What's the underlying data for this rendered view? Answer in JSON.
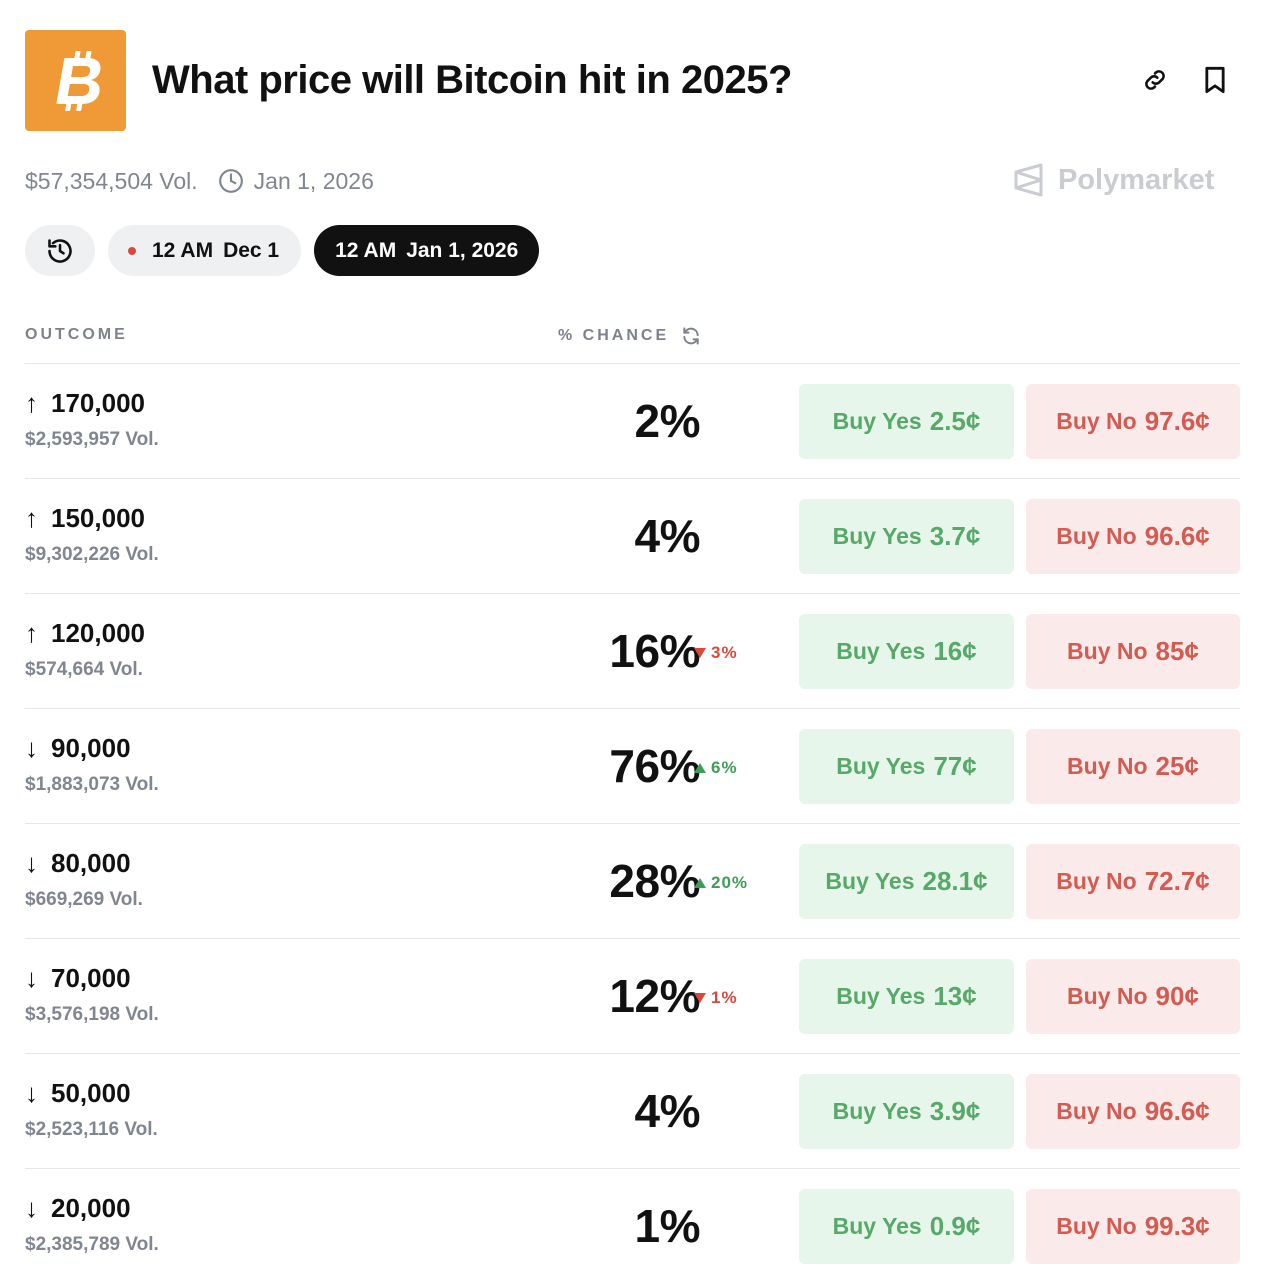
{
  "header": {
    "title": "What price will Bitcoin hit in 2025?",
    "logo_icon": "bitcoin-logo",
    "actions": [
      "link-icon",
      "bookmark-icon"
    ]
  },
  "meta": {
    "volume": "$57,354,504 Vol.",
    "end_date": "Jan 1, 2026",
    "brand": "Polymarket"
  },
  "pills": {
    "history_icon": "history-icon",
    "dec": {
      "time": "12 AM",
      "date": "Dec 1"
    },
    "jan": {
      "time": "12 AM",
      "date": "Jan 1, 2026"
    }
  },
  "columns": {
    "outcome": "OUTCOME",
    "chance": "% CHANCE"
  },
  "colors": {
    "accent": "#f09a37",
    "yes": "#58a86a",
    "no": "#d25b52",
    "up": "#3f9d55",
    "down": "#d64a3c"
  },
  "rows": [
    {
      "arrow": "↑",
      "label": "170,000",
      "vol": "$2,593,957 Vol.",
      "chance": "2%",
      "delta": "",
      "dir": "",
      "yes_label": "Buy Yes",
      "yes_price": "2.5¢",
      "no_label": "Buy No",
      "no_price": "97.6¢"
    },
    {
      "arrow": "↑",
      "label": "150,000",
      "vol": "$9,302,226 Vol.",
      "chance": "4%",
      "delta": "",
      "dir": "",
      "yes_label": "Buy Yes",
      "yes_price": "3.7¢",
      "no_label": "Buy No",
      "no_price": "96.6¢"
    },
    {
      "arrow": "↑",
      "label": "120,000",
      "vol": "$574,664 Vol.",
      "chance": "16%",
      "delta": "3%",
      "dir": "down",
      "yes_label": "Buy Yes",
      "yes_price": "16¢",
      "no_label": "Buy No",
      "no_price": "85¢"
    },
    {
      "arrow": "↓",
      "label": "90,000",
      "vol": "$1,883,073 Vol.",
      "chance": "76%",
      "delta": "6%",
      "dir": "up",
      "yes_label": "Buy Yes",
      "yes_price": "77¢",
      "no_label": "Buy No",
      "no_price": "25¢"
    },
    {
      "arrow": "↓",
      "label": "80,000",
      "vol": "$669,269 Vol.",
      "chance": "28%",
      "delta": "20%",
      "dir": "up",
      "yes_label": "Buy Yes",
      "yes_price": "28.1¢",
      "no_label": "Buy No",
      "no_price": "72.7¢"
    },
    {
      "arrow": "↓",
      "label": "70,000",
      "vol": "$3,576,198 Vol.",
      "chance": "12%",
      "delta": "1%",
      "dir": "down",
      "yes_label": "Buy Yes",
      "yes_price": "13¢",
      "no_label": "Buy No",
      "no_price": "90¢"
    },
    {
      "arrow": "↓",
      "label": "50,000",
      "vol": "$2,523,116 Vol.",
      "chance": "4%",
      "delta": "",
      "dir": "",
      "yes_label": "Buy Yes",
      "yes_price": "3.9¢",
      "no_label": "Buy No",
      "no_price": "96.6¢"
    },
    {
      "arrow": "↓",
      "label": "20,000",
      "vol": "$2,385,789 Vol.",
      "chance": "1%",
      "delta": "",
      "dir": "",
      "yes_label": "Buy Yes",
      "yes_price": "0.9¢",
      "no_label": "Buy No",
      "no_price": "99.3¢"
    }
  ]
}
